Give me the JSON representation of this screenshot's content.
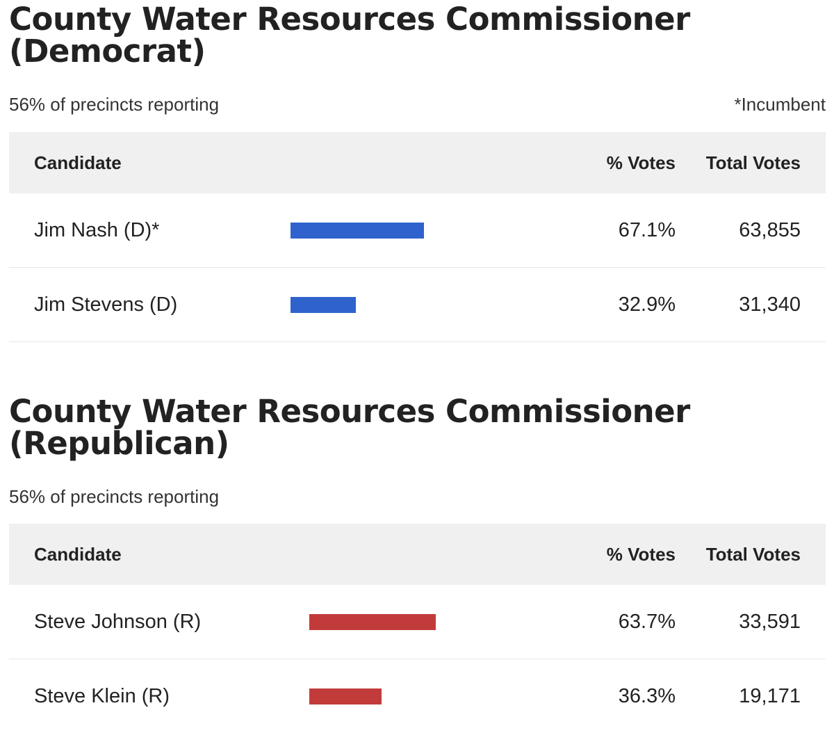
{
  "races": [
    {
      "title_line1": "County Water Resources Commissioner",
      "title_line2": "(Democrat)",
      "reporting": "56% of precincts reporting",
      "incumbent_note": "*Incumbent",
      "headers": {
        "candidate": "Candidate",
        "pct": "% Votes",
        "total": "Total Votes"
      },
      "bar_color": "#2f62cc",
      "candidates": [
        {
          "name": "Jim Nash (D)*",
          "pct": "67.1%",
          "pct_value": 67.1,
          "total": "63,855"
        },
        {
          "name": "Jim Stevens (D)",
          "pct": "32.9%",
          "pct_value": 32.9,
          "total": "31,340"
        }
      ]
    },
    {
      "title_line1": "County Water Resources Commissioner",
      "title_line2": "(Republican)",
      "reporting": "56% of precincts reporting",
      "headers": {
        "candidate": "Candidate",
        "pct": "% Votes",
        "total": "Total Votes"
      },
      "bar_color": "#c23b3b",
      "candidates": [
        {
          "name": "Steve Johnson (R)",
          "pct": "63.7%",
          "pct_value": 63.7,
          "total": "33,591"
        },
        {
          "name": "Steve Klein (R)",
          "pct": "36.3%",
          "pct_value": 36.3,
          "total": "19,171"
        }
      ]
    }
  ]
}
